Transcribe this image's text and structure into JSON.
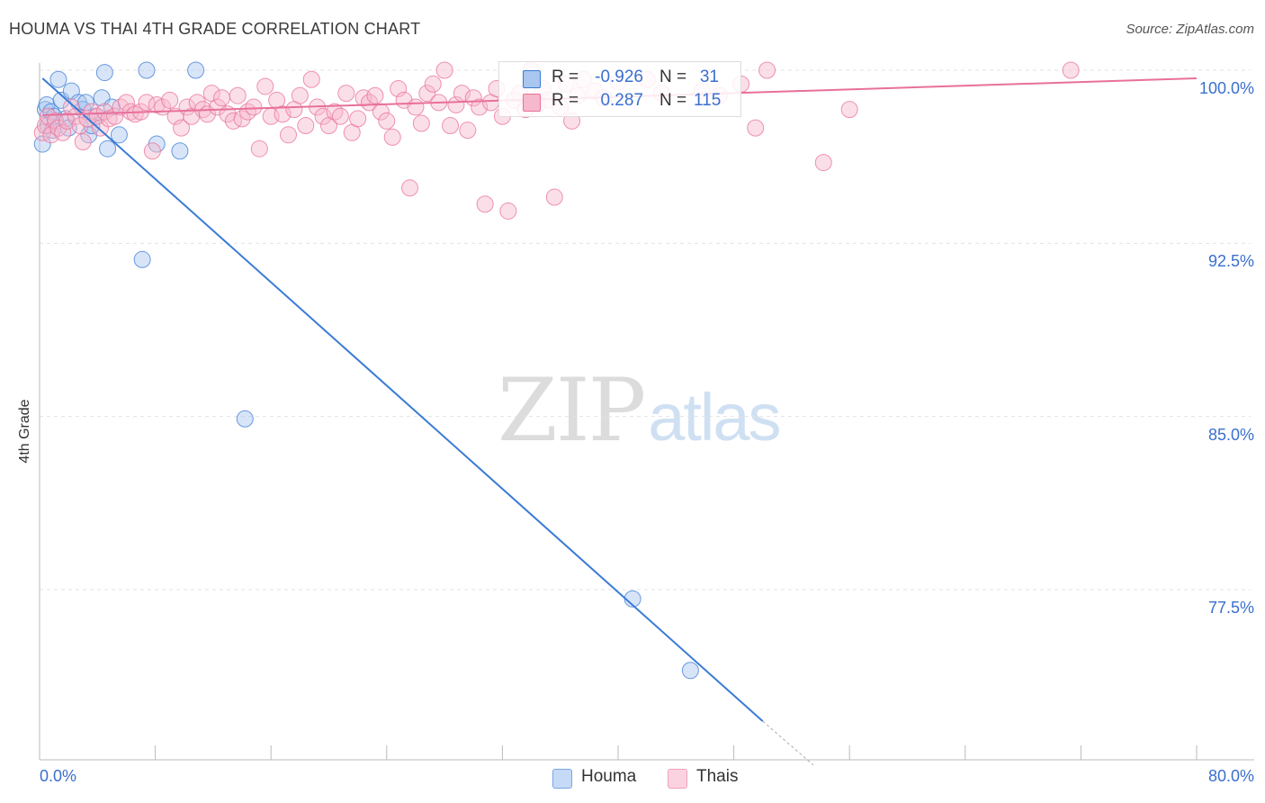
{
  "title": "HOUMA VS THAI 4TH GRADE CORRELATION CHART",
  "source": "Source: ZipAtlas.com",
  "watermark": {
    "zip": "ZIP",
    "atlas": "atlas"
  },
  "colors": {
    "houma": "#3a7bd5",
    "thai": "#e8709a",
    "houma_fill": "#a8c6f0",
    "thai_fill": "#f6b8cc",
    "tick_text": "#3a6fcf",
    "grid": "#e3e3e3"
  },
  "stats": {
    "houma": {
      "r_label": "R =",
      "r_value": "-0.926",
      "n_label": "N =",
      "n_value": "31"
    },
    "thai": {
      "r_label": "R =",
      "r_value": "0.287",
      "n_label": "N =",
      "n_value": "115"
    }
  },
  "chart_data": {
    "type": "scatter",
    "title": "HOUMA VS THAI 4TH GRADE CORRELATION CHART",
    "xlabel": "",
    "ylabel": "4th Grade",
    "xlim": [
      0,
      80
    ],
    "ylim": [
      69.5,
      101
    ],
    "x_tick_labels": [
      "0.0%",
      "80.0%"
    ],
    "y_ticks": [
      77.5,
      85.0,
      92.5,
      100.0
    ],
    "y_tick_labels": [
      "77.5%",
      "85.0%",
      "92.5%",
      "100.0%"
    ],
    "grid": true,
    "legend_position": "bottom-center",
    "series": [
      {
        "name": "Houma",
        "color": "#3a7bd5",
        "trend": {
          "x": [
            0.2,
            50.0
          ],
          "y": [
            99.65,
            71.8
          ],
          "dashed_to": [
            53.5,
            69.9
          ]
        },
        "points": [
          [
            0.2,
            96.8
          ],
          [
            0.4,
            98.3
          ],
          [
            0.5,
            98.5
          ],
          [
            0.6,
            97.6
          ],
          [
            0.8,
            98.2
          ],
          [
            0.9,
            97.4
          ],
          [
            1.3,
            99.6
          ],
          [
            1.5,
            98.7
          ],
          [
            1.8,
            97.9
          ],
          [
            2.0,
            97.5
          ],
          [
            2.2,
            99.1
          ],
          [
            2.7,
            98.6
          ],
          [
            3.0,
            98.3
          ],
          [
            3.2,
            98.6
          ],
          [
            3.4,
            97.2
          ],
          [
            3.6,
            97.6
          ],
          [
            3.9,
            98.0
          ],
          [
            4.3,
            98.8
          ],
          [
            4.5,
            99.9
          ],
          [
            4.7,
            96.6
          ],
          [
            5.0,
            98.4
          ],
          [
            5.5,
            97.2
          ],
          [
            7.1,
            91.8
          ],
          [
            7.4,
            100.0
          ],
          [
            8.1,
            96.8
          ],
          [
            9.7,
            96.5
          ],
          [
            10.8,
            100.0
          ],
          [
            14.2,
            84.9
          ],
          [
            41.0,
            77.1
          ],
          [
            45.0,
            74.0
          ],
          [
            1.0,
            98.0
          ]
        ]
      },
      {
        "name": "Thais",
        "color": "#e8709a",
        "trend": {
          "x": [
            0.2,
            80.0
          ],
          "y": [
            98.05,
            99.65
          ]
        },
        "points": [
          [
            0.2,
            97.3
          ],
          [
            0.4,
            97.6
          ],
          [
            0.6,
            98.0
          ],
          [
            0.8,
            97.2
          ],
          [
            1.1,
            97.8
          ],
          [
            1.3,
            97.5
          ],
          [
            1.6,
            97.3
          ],
          [
            1.9,
            97.8
          ],
          [
            2.2,
            98.4
          ],
          [
            2.5,
            98.0
          ],
          [
            2.8,
            97.6
          ],
          [
            3.0,
            96.9
          ],
          [
            3.3,
            97.9
          ],
          [
            3.6,
            98.2
          ],
          [
            4.0,
            98.0
          ],
          [
            4.2,
            97.5
          ],
          [
            4.5,
            98.2
          ],
          [
            4.8,
            97.9
          ],
          [
            5.2,
            98.0
          ],
          [
            5.6,
            98.4
          ],
          [
            6.0,
            98.6
          ],
          [
            6.3,
            98.2
          ],
          [
            6.6,
            98.1
          ],
          [
            7.0,
            98.2
          ],
          [
            7.4,
            98.6
          ],
          [
            7.8,
            96.5
          ],
          [
            8.1,
            98.5
          ],
          [
            8.5,
            98.4
          ],
          [
            9.0,
            98.7
          ],
          [
            9.4,
            98.0
          ],
          [
            9.8,
            97.5
          ],
          [
            10.2,
            98.4
          ],
          [
            10.5,
            98.0
          ],
          [
            10.9,
            98.6
          ],
          [
            11.3,
            98.3
          ],
          [
            11.6,
            98.1
          ],
          [
            11.9,
            99.0
          ],
          [
            12.3,
            98.4
          ],
          [
            12.6,
            98.8
          ],
          [
            13.0,
            98.1
          ],
          [
            13.4,
            97.8
          ],
          [
            13.7,
            98.9
          ],
          [
            14.0,
            97.9
          ],
          [
            14.4,
            98.2
          ],
          [
            14.8,
            98.4
          ],
          [
            15.2,
            96.6
          ],
          [
            15.6,
            99.3
          ],
          [
            16.0,
            98.0
          ],
          [
            16.4,
            98.7
          ],
          [
            16.8,
            98.1
          ],
          [
            17.2,
            97.2
          ],
          [
            17.6,
            98.3
          ],
          [
            18.0,
            98.9
          ],
          [
            18.4,
            97.6
          ],
          [
            18.8,
            99.6
          ],
          [
            19.2,
            98.4
          ],
          [
            19.6,
            98.0
          ],
          [
            20.0,
            97.6
          ],
          [
            20.4,
            98.2
          ],
          [
            20.8,
            98.0
          ],
          [
            21.2,
            99.0
          ],
          [
            21.6,
            97.3
          ],
          [
            22.0,
            97.9
          ],
          [
            22.4,
            98.8
          ],
          [
            22.8,
            98.6
          ],
          [
            23.2,
            98.9
          ],
          [
            23.6,
            98.2
          ],
          [
            24.0,
            97.8
          ],
          [
            24.4,
            97.1
          ],
          [
            24.8,
            99.2
          ],
          [
            25.2,
            98.7
          ],
          [
            25.6,
            94.9
          ],
          [
            26.0,
            98.4
          ],
          [
            26.4,
            97.7
          ],
          [
            26.8,
            99.0
          ],
          [
            27.2,
            99.4
          ],
          [
            27.6,
            98.6
          ],
          [
            28.0,
            100.0
          ],
          [
            28.4,
            97.6
          ],
          [
            28.8,
            98.5
          ],
          [
            29.2,
            99.0
          ],
          [
            29.6,
            97.4
          ],
          [
            30.0,
            98.8
          ],
          [
            30.4,
            98.4
          ],
          [
            30.8,
            94.2
          ],
          [
            31.2,
            98.6
          ],
          [
            31.6,
            99.2
          ],
          [
            32.0,
            98.0
          ],
          [
            32.4,
            93.9
          ],
          [
            32.8,
            98.7
          ],
          [
            33.2,
            99.0
          ],
          [
            33.6,
            98.3
          ],
          [
            34.0,
            100.0
          ],
          [
            34.4,
            98.5
          ],
          [
            34.8,
            99.2
          ],
          [
            35.2,
            98.7
          ],
          [
            35.6,
            94.5
          ],
          [
            36.0,
            98.4
          ],
          [
            36.4,
            99.4
          ],
          [
            36.8,
            97.8
          ],
          [
            37.2,
            98.9
          ],
          [
            37.6,
            99.6
          ],
          [
            38.4,
            99.1
          ],
          [
            39.0,
            98.8
          ],
          [
            40.0,
            99.5
          ],
          [
            42.0,
            99.6
          ],
          [
            43.0,
            99.0
          ],
          [
            45.8,
            99.1
          ],
          [
            47.0,
            98.9
          ],
          [
            48.5,
            99.4
          ],
          [
            49.5,
            97.5
          ],
          [
            50.3,
            100.0
          ],
          [
            54.2,
            96.0
          ],
          [
            56.0,
            98.3
          ],
          [
            71.3,
            100.0
          ]
        ]
      }
    ]
  }
}
